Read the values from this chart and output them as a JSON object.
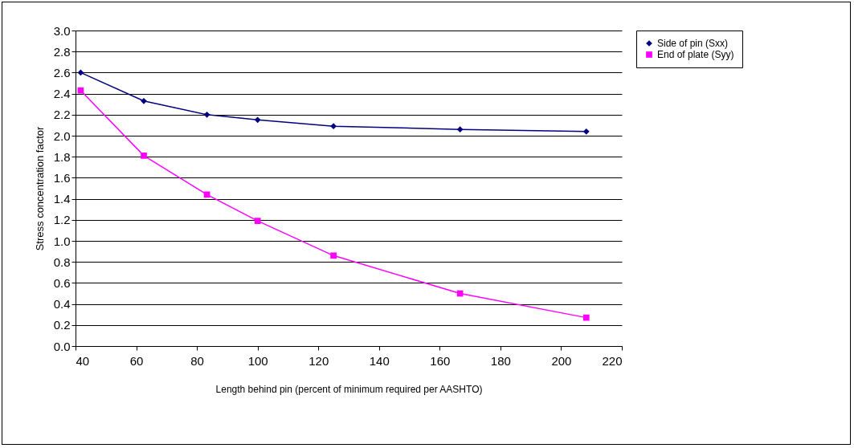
{
  "chart_data": {
    "type": "line",
    "xlabel": "Length behind pin (percent of minimum required per AASHTO)",
    "ylabel": "Stress concentration factor",
    "xlim": [
      40,
      220
    ],
    "xticks": [
      40,
      60,
      80,
      100,
      120,
      140,
      160,
      180,
      200,
      220
    ],
    "ylim": [
      0,
      3
    ],
    "yticks": [
      {
        "value": 0,
        "label": "0.0"
      },
      0.2,
      0.4,
      0.6,
      0.8,
      {
        "value": 1,
        "label": "1.0"
      },
      1.2,
      1.4,
      1.6,
      1.8,
      {
        "value": 2,
        "label": "2.0"
      },
      2.2,
      2.4,
      2.6,
      2.8,
      {
        "value": 3,
        "label": "3.0"
      }
    ],
    "x": [
      41.7,
      62.5,
      83.3,
      100,
      125,
      166.7,
      208.3
    ],
    "series": [
      {
        "name": "Side of pin (Sxx)",
        "color": "#000080",
        "marker": "diamond",
        "values": [
          2.6,
          2.33,
          2.2,
          2.15,
          2.09,
          2.06,
          2.04
        ]
      },
      {
        "name": "End of plate (Syy)",
        "color": "#ff00ff",
        "marker": "square",
        "values": [
          2.43,
          1.81,
          1.44,
          1.19,
          0.86,
          0.5,
          0.27
        ]
      }
    ],
    "grid": "y",
    "legend": "right",
    "line_style": "solid"
  }
}
